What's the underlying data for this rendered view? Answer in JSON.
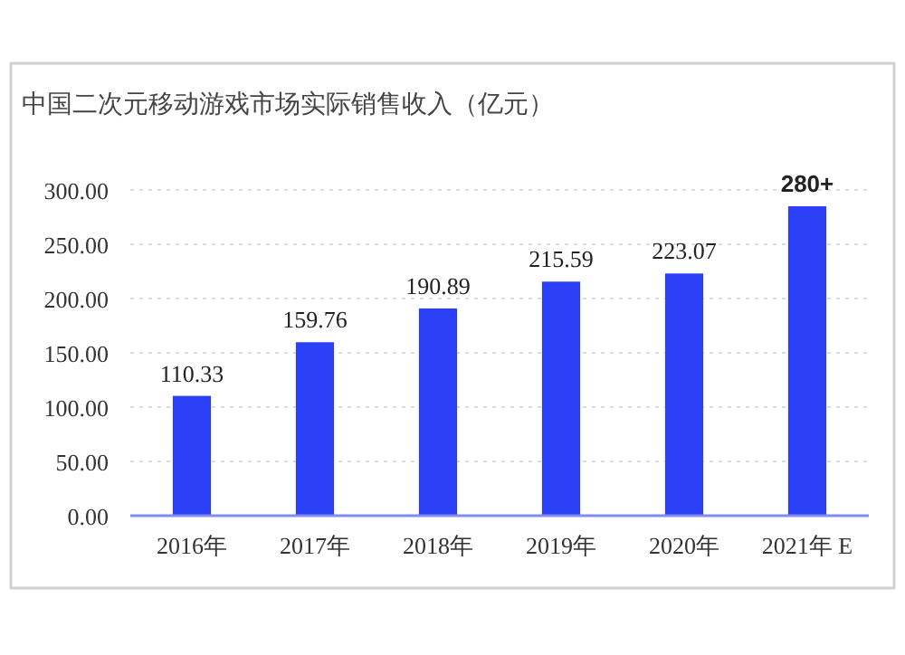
{
  "chart_data": {
    "type": "bar",
    "title": "中国二次元移动游戏市场实际销售收入（亿元）",
    "categories": [
      "2016年",
      "2017年",
      "2018年",
      "2019年",
      "2020年",
      "2021年 E"
    ],
    "series": [
      {
        "color": "#2b3ff7",
        "values": [
          110.33,
          159.76,
          190.89,
          215.59,
          223.07,
          285
        ]
      }
    ],
    "value_labels": [
      "110.33",
      "159.76",
      "190.89",
      "215.59",
      "223.07",
      "280+"
    ],
    "ylim": [
      0,
      300
    ],
    "yticks": [
      {
        "value": 0,
        "label": "0.00"
      },
      {
        "value": 50,
        "label": "50.00"
      },
      {
        "value": 100,
        "label": "100.00"
      },
      {
        "value": 150,
        "label": "150.00"
      },
      {
        "value": 200,
        "label": "200.00"
      },
      {
        "value": 250,
        "label": "250.00"
      },
      {
        "value": 300,
        "label": "300.00"
      }
    ],
    "grid": "y"
  }
}
